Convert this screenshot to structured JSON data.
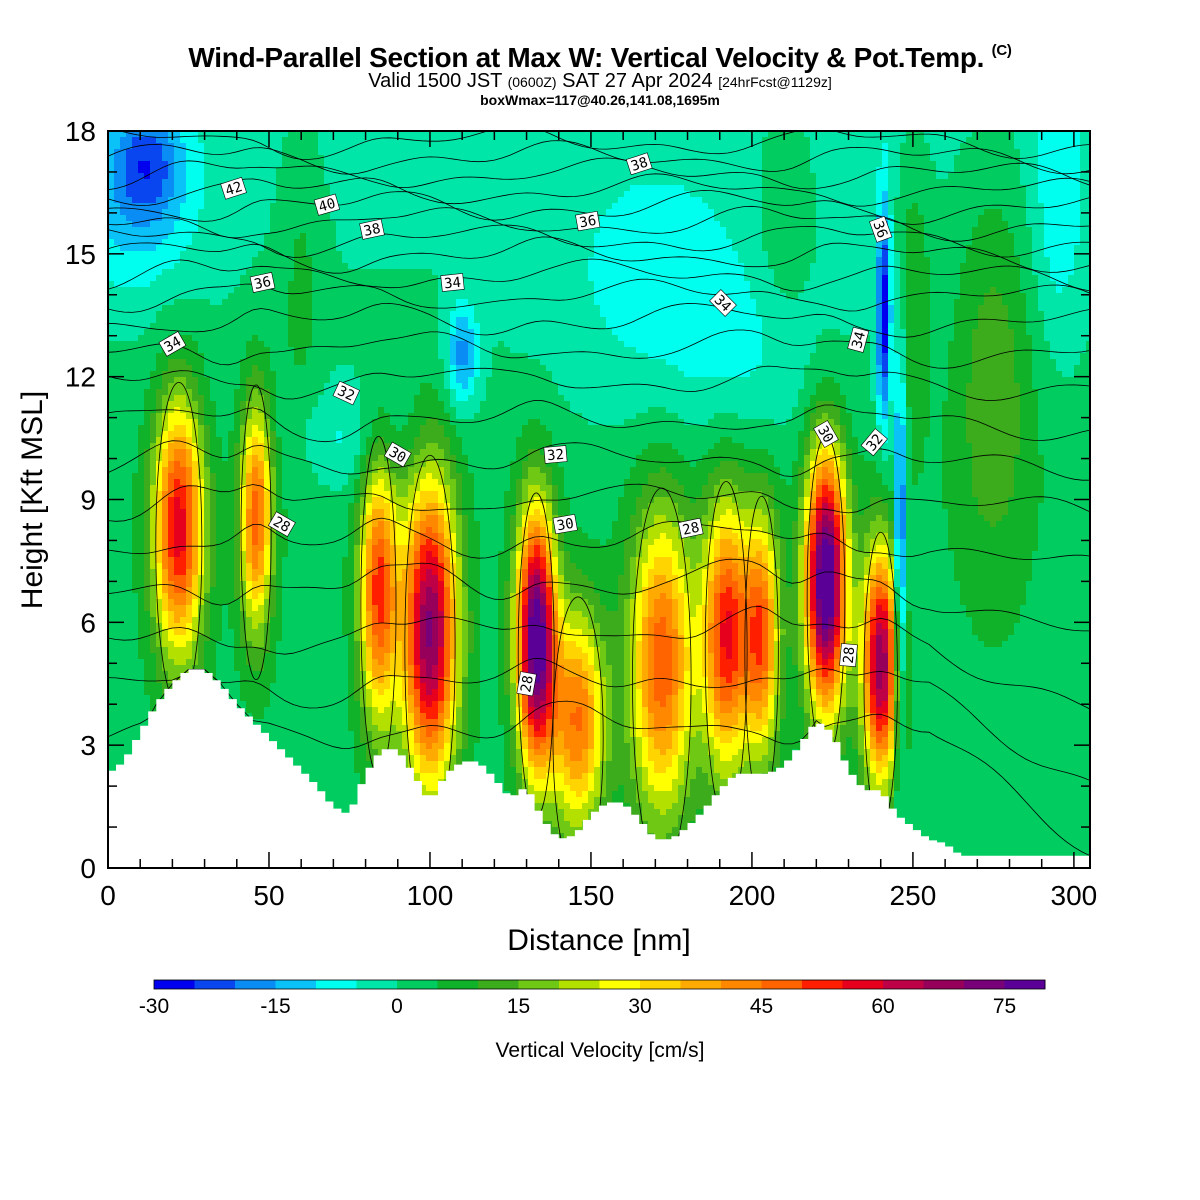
{
  "chart_data": {
    "type": "heatmap",
    "title": "Wind-Parallel Section at Max W: Vertical Velocity & Pot.Temp.",
    "title_mark": "(C)",
    "subtitle": {
      "a": "Valid 1500 JST ",
      "b": "(0600Z)",
      "c": " SAT 27 Apr 2024 ",
      "d": "[24hrFcst@1129z]"
    },
    "subtitle2": "boxWmax=117@40.26,141.08,1695m",
    "xlabel": "Distance [nm]",
    "ylabel": "Height [Kft MSL]",
    "xlim": [
      0,
      305
    ],
    "ylim": [
      0,
      18
    ],
    "x_ticks": [
      "0",
      "50",
      "100",
      "150",
      "200",
      "250",
      "300"
    ],
    "y_ticks": [
      "0",
      "3",
      "6",
      "9",
      "12",
      "15",
      "18"
    ],
    "x_tick_values": [
      0,
      50,
      100,
      150,
      200,
      250,
      300
    ],
    "y_tick_values": [
      0,
      3,
      6,
      9,
      12,
      15,
      18
    ],
    "colorbar": {
      "label": "Vertical Velocity [cm/s]",
      "min": -30,
      "max": 85,
      "step": 5,
      "tick_labels": [
        "-30",
        "-15",
        "0",
        "15",
        "30",
        "45",
        "60",
        "75"
      ],
      "tick_values": [
        -30,
        -15,
        0,
        15,
        30,
        45,
        60,
        75
      ],
      "colors": [
        "#0000ee",
        "#0a46f0",
        "#0a8cf5",
        "#0ac2f8",
        "#00ffee",
        "#00e6a8",
        "#00cc60",
        "#10b22a",
        "#3cac1c",
        "#6ec814",
        "#b4e000",
        "#ffff00",
        "#ffd400",
        "#ffaa00",
        "#ff8800",
        "#ff6400",
        "#ff1e00",
        "#e6001e",
        "#be0046",
        "#96005a",
        "#780078",
        "#5a0096"
      ]
    },
    "terrain_kft": [
      [
        0,
        2.3
      ],
      [
        5,
        2.6
      ],
      [
        10,
        3.3
      ],
      [
        15,
        4.0
      ],
      [
        20,
        4.5
      ],
      [
        25,
        4.85
      ],
      [
        30,
        4.85
      ],
      [
        35,
        4.5
      ],
      [
        40,
        4.0
      ],
      [
        45,
        3.6
      ],
      [
        50,
        3.2
      ],
      [
        55,
        2.8
      ],
      [
        60,
        2.4
      ],
      [
        65,
        2.0
      ],
      [
        70,
        1.5
      ],
      [
        75,
        1.3
      ],
      [
        80,
        2.3
      ],
      [
        85,
        2.9
      ],
      [
        90,
        2.9
      ],
      [
        95,
        2.3
      ],
      [
        100,
        1.6
      ],
      [
        105,
        2.3
      ],
      [
        110,
        2.6
      ],
      [
        115,
        2.6
      ],
      [
        120,
        2.2
      ],
      [
        125,
        1.7
      ],
      [
        130,
        2.0
      ],
      [
        135,
        1.2
      ],
      [
        140,
        0.7
      ],
      [
        145,
        0.8
      ],
      [
        150,
        1.3
      ],
      [
        155,
        1.6
      ],
      [
        160,
        1.6
      ],
      [
        165,
        1.2
      ],
      [
        170,
        0.7
      ],
      [
        175,
        0.7
      ],
      [
        180,
        1.0
      ],
      [
        185,
        1.4
      ],
      [
        190,
        1.9
      ],
      [
        195,
        2.3
      ],
      [
        200,
        2.3
      ],
      [
        205,
        2.3
      ],
      [
        210,
        2.5
      ],
      [
        215,
        3.0
      ],
      [
        220,
        3.6
      ],
      [
        225,
        3.3
      ],
      [
        230,
        2.4
      ],
      [
        235,
        1.9
      ],
      [
        240,
        1.9
      ],
      [
        245,
        1.3
      ],
      [
        250,
        1.0
      ],
      [
        255,
        0.7
      ],
      [
        260,
        0.6
      ],
      [
        265,
        0.3
      ],
      [
        270,
        0.3
      ],
      [
        280,
        0.3
      ],
      [
        290,
        0.3
      ],
      [
        300,
        0.3
      ],
      [
        305,
        0.3
      ]
    ],
    "w_features": [
      {
        "x": 22,
        "z": 8.3,
        "sx": 5.5,
        "sz": 2.2,
        "w": 55
      },
      {
        "x": 46,
        "z": 8.6,
        "sx": 3.6,
        "sz": 2.0,
        "w": 45
      },
      {
        "x": 84,
        "z": 6.8,
        "sx": 4.2,
        "sz": 2.3,
        "w": 48
      },
      {
        "x": 100,
        "z": 5.8,
        "sx": 6.0,
        "sz": 2.6,
        "w": 68
      },
      {
        "x": 133,
        "z": 5.6,
        "sx": 4.3,
        "sz": 2.2,
        "w": 78
      },
      {
        "x": 146,
        "z": 3.6,
        "sx": 6.0,
        "sz": 1.9,
        "w": 42
      },
      {
        "x": 172,
        "z": 5.0,
        "sx": 7.0,
        "sz": 2.6,
        "w": 46
      },
      {
        "x": 192,
        "z": 5.7,
        "sx": 5.0,
        "sz": 2.3,
        "w": 52
      },
      {
        "x": 203,
        "z": 5.7,
        "sx": 4.0,
        "sz": 2.1,
        "w": 44
      },
      {
        "x": 223,
        "z": 7.0,
        "sx": 4.5,
        "sz": 2.2,
        "w": 82
      },
      {
        "x": 240,
        "z": 5.0,
        "sx": 4.0,
        "sz": 2.0,
        "w": 66
      },
      {
        "x": 246,
        "z": 7.5,
        "sx": 1.3,
        "sz": 3.6,
        "w": -30
      },
      {
        "x": 241,
        "z": 13.5,
        "sx": 1.6,
        "sz": 2.0,
        "w": -30
      },
      {
        "x": 110,
        "z": 12.5,
        "sx": 3.5,
        "sz": 0.9,
        "w": -18
      },
      {
        "x": 12,
        "z": 17.3,
        "sx": 8.0,
        "sz": 1.0,
        "w": -18
      },
      {
        "x": 8,
        "z": 15.8,
        "sx": 14,
        "sz": 1.4,
        "w": -10
      },
      {
        "x": 170,
        "z": 14.0,
        "sx": 25,
        "sz": 2.4,
        "w": -7
      },
      {
        "x": 75,
        "z": 10.5,
        "sx": 14,
        "sz": 1.0,
        "w": -8
      },
      {
        "x": 200,
        "z": 12.5,
        "sx": 18,
        "sz": 1.5,
        "w": -5
      },
      {
        "x": 275,
        "z": 12.0,
        "sx": 9,
        "sz": 3.5,
        "w": 12
      },
      {
        "x": 250,
        "z": 14.0,
        "sx": 4,
        "sz": 2.5,
        "w": 9
      },
      {
        "x": 210,
        "z": 16.0,
        "sx": 6,
        "sz": 2.0,
        "w": 7
      },
      {
        "x": 60,
        "z": 14.5,
        "sx": 5,
        "sz": 3.0,
        "w": 6
      },
      {
        "x": 295,
        "z": 16.0,
        "sx": 6,
        "sz": 2.5,
        "w": -8
      }
    ],
    "theta_contour_labels": [
      {
        "text": "42",
        "x": 39,
        "z": 16.6,
        "rot": -18
      },
      {
        "text": "40",
        "x": 68,
        "z": 16.2,
        "rot": -16
      },
      {
        "text": "38",
        "x": 82,
        "z": 15.6,
        "rot": -12
      },
      {
        "text": "38",
        "x": 165,
        "z": 17.2,
        "rot": -18
      },
      {
        "text": "36",
        "x": 48,
        "z": 14.3,
        "rot": -12
      },
      {
        "text": "36",
        "x": 149,
        "z": 15.8,
        "rot": -10
      },
      {
        "text": "36",
        "x": 240,
        "z": 15.6,
        "rot": 70
      },
      {
        "text": "34",
        "x": 20,
        "z": 12.8,
        "rot": -30
      },
      {
        "text": "34",
        "x": 107,
        "z": 14.3,
        "rot": -6
      },
      {
        "text": "34",
        "x": 191,
        "z": 13.8,
        "rot": 45
      },
      {
        "text": "34",
        "x": 233,
        "z": 12.9,
        "rot": -75
      },
      {
        "text": "32",
        "x": 74,
        "z": 11.6,
        "rot": 25
      },
      {
        "text": "32",
        "x": 139,
        "z": 10.1,
        "rot": -5
      },
      {
        "text": "32",
        "x": 238,
        "z": 10.4,
        "rot": -50
      },
      {
        "text": "30",
        "x": 90,
        "z": 10.1,
        "rot": 30
      },
      {
        "text": "30",
        "x": 142,
        "z": 8.4,
        "rot": -10
      },
      {
        "text": "30",
        "x": 223,
        "z": 10.6,
        "rot": 60
      },
      {
        "text": "28",
        "x": 54,
        "z": 8.4,
        "rot": 30
      },
      {
        "text": "28",
        "x": 181,
        "z": 8.3,
        "rot": -12
      },
      {
        "text": "28",
        "x": 130,
        "z": 4.5,
        "rot": -80
      },
      {
        "text": "28",
        "x": 230,
        "z": 5.2,
        "rot": -85
      }
    ]
  }
}
